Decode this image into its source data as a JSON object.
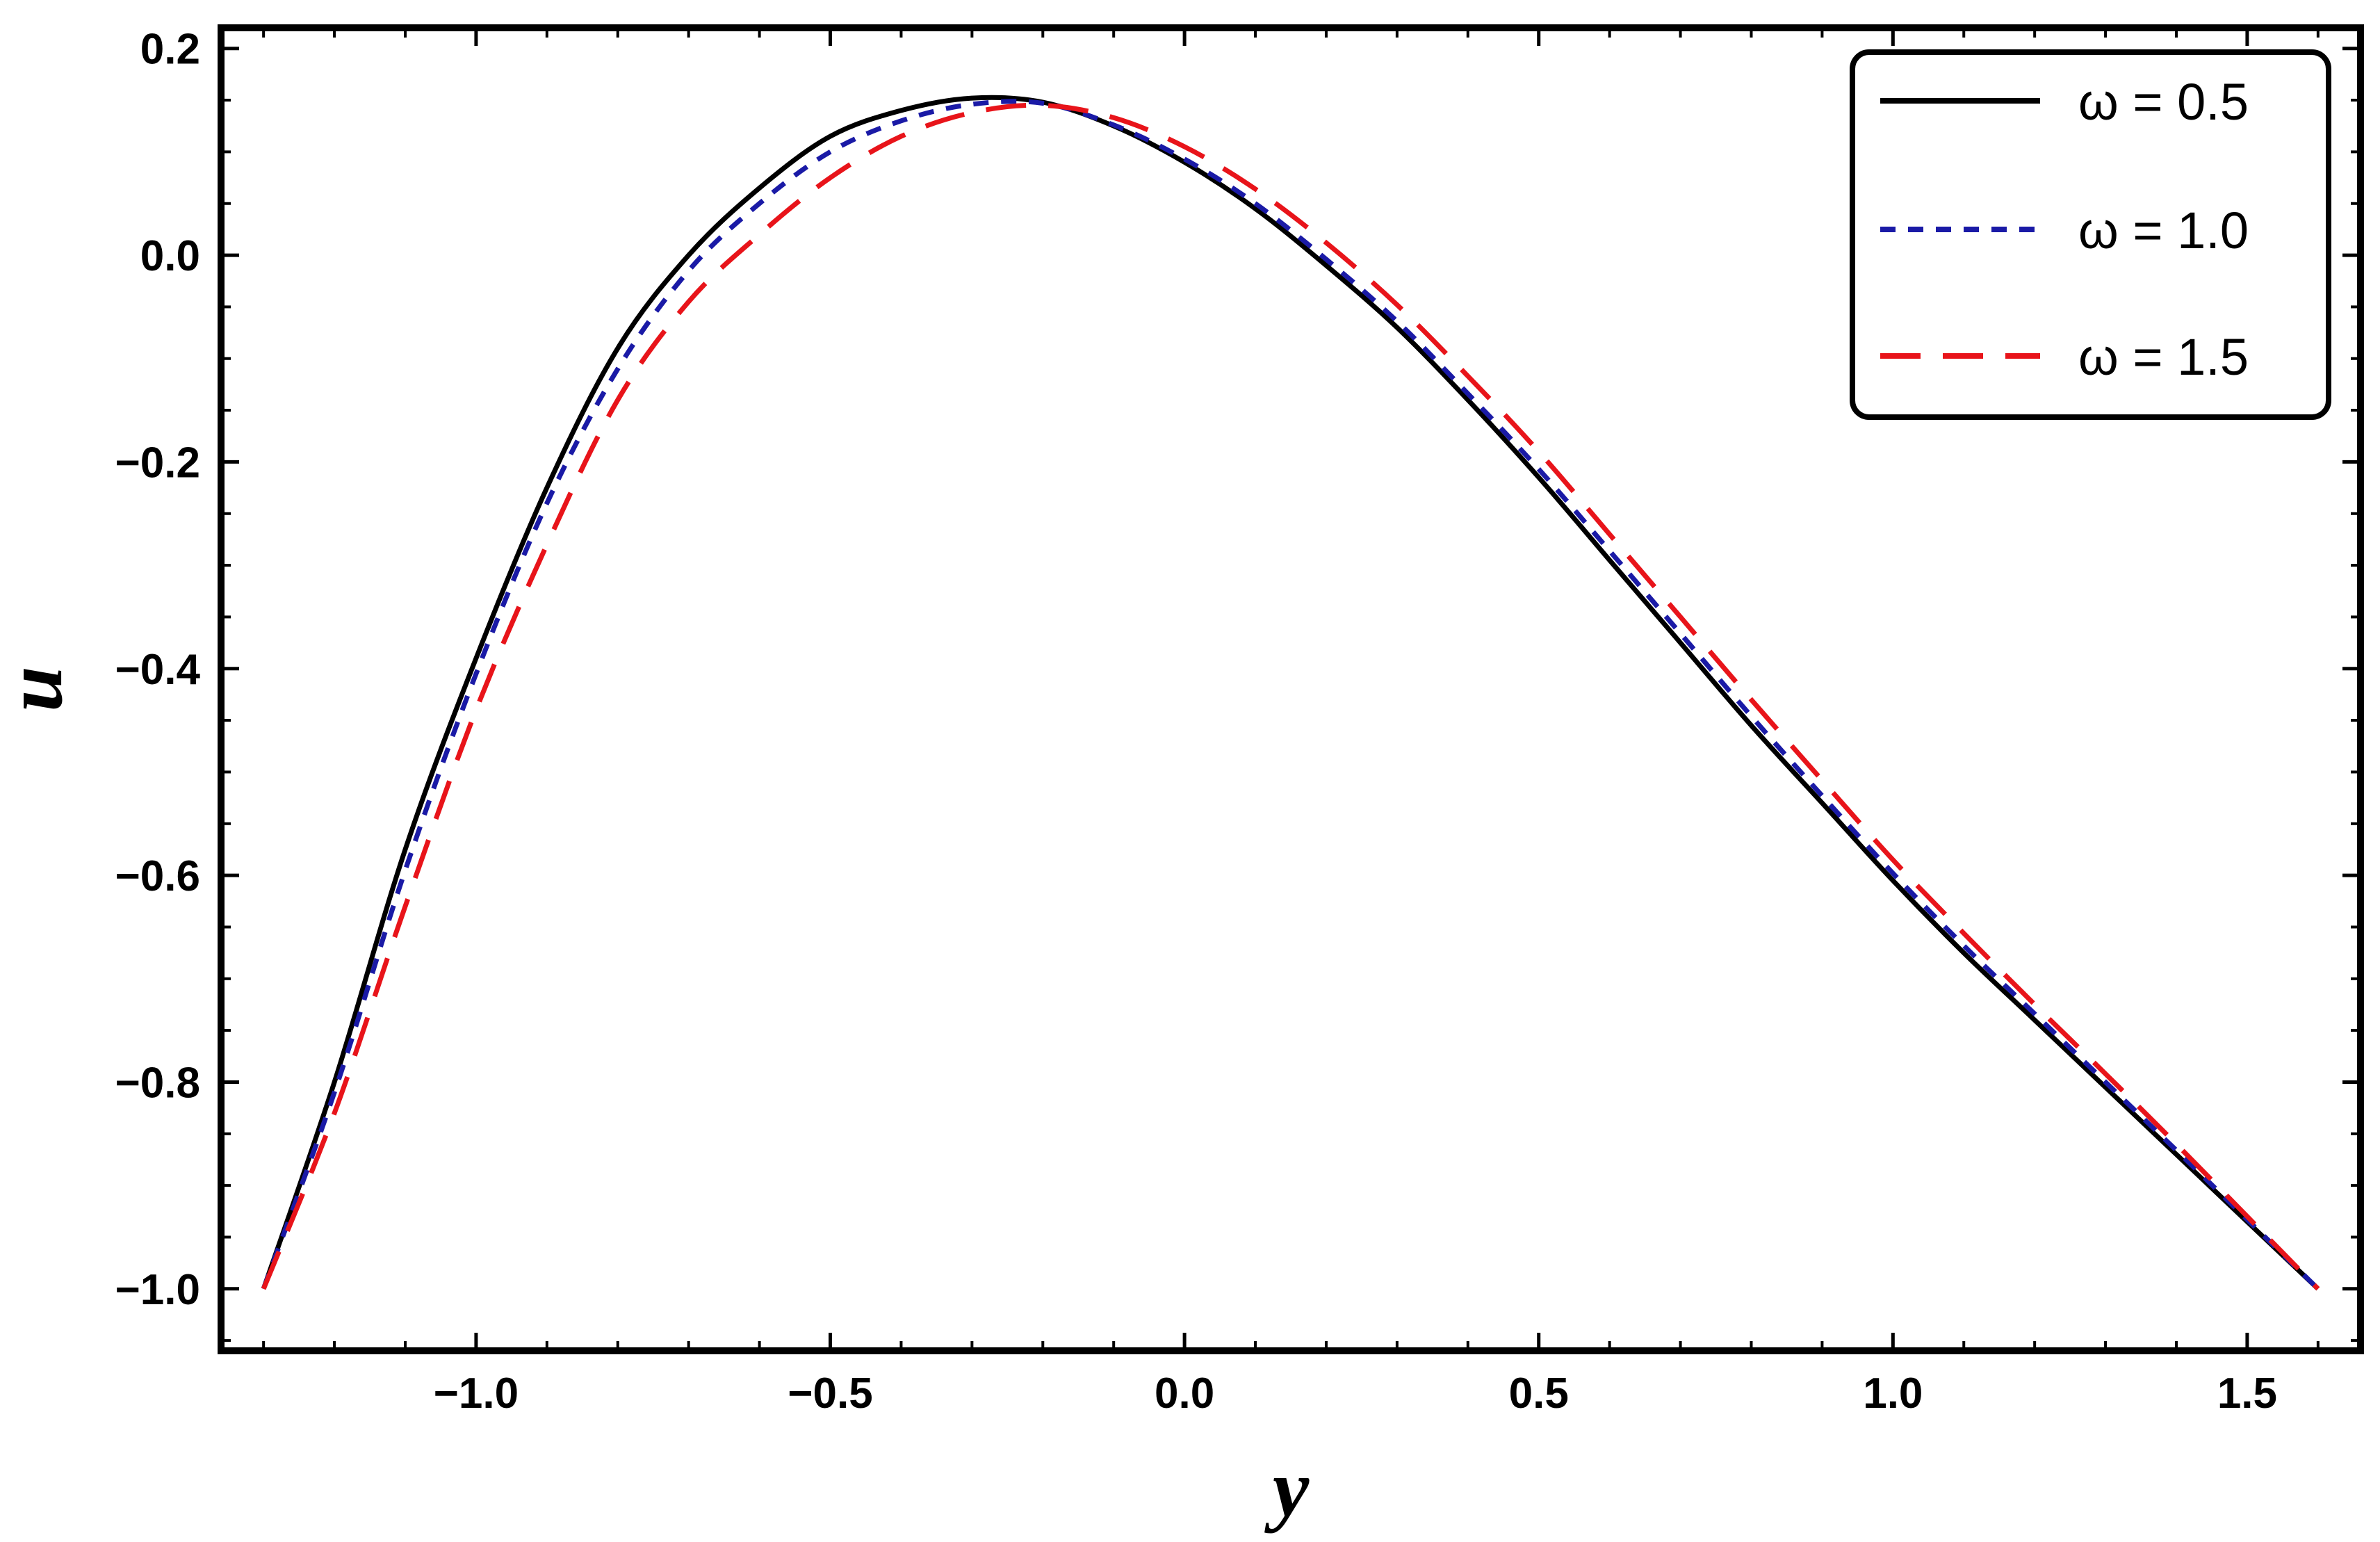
{
  "chart_data": {
    "type": "line",
    "xlabel": "y",
    "ylabel": "u",
    "xlim": [
      -1.36,
      1.66
    ],
    "ylim": [
      -1.06,
      0.22
    ],
    "grid": false,
    "legend_position": "top-right",
    "x_ticks": [
      {
        "value": -1.0,
        "label": "−1.0"
      },
      {
        "value": -0.5,
        "label": "−0.5"
      },
      {
        "value": 0.0,
        "label": "0.0"
      },
      {
        "value": 0.5,
        "label": "0.5"
      },
      {
        "value": 1.0,
        "label": "1.0"
      },
      {
        "value": 1.5,
        "label": "1.5"
      }
    ],
    "y_ticks": [
      {
        "value": 0.2,
        "label": "0.2"
      },
      {
        "value": 0.0,
        "label": "0.0"
      },
      {
        "value": -0.2,
        "label": "−0.2"
      },
      {
        "value": -0.4,
        "label": "−0.4"
      },
      {
        "value": -0.6,
        "label": "−0.6"
      },
      {
        "value": -0.8,
        "label": "−0.8"
      },
      {
        "value": -1.0,
        "label": "−1.0"
      }
    ],
    "x": [
      -1.3,
      -1.2,
      -1.1,
      -1.0,
      -0.9,
      -0.8,
      -0.7,
      -0.6,
      -0.5,
      -0.4,
      -0.3,
      -0.2,
      -0.1,
      0.0,
      0.1,
      0.2,
      0.3,
      0.4,
      0.5,
      0.6,
      0.7,
      0.8,
      0.9,
      1.0,
      1.1,
      1.2,
      1.3,
      1.4,
      1.5,
      1.6
    ],
    "series": [
      {
        "name": "ω = 0.5",
        "color": "#000000",
        "dash": "solid",
        "values": [
          -1.0,
          -0.8,
          -0.575,
          -0.39,
          -0.225,
          -0.09,
          0.0,
          0.065,
          0.115,
          0.14,
          0.152,
          0.148,
          0.125,
          0.09,
          0.045,
          -0.01,
          -0.07,
          -0.14,
          -0.215,
          -0.295,
          -0.375,
          -0.455,
          -0.53,
          -0.605,
          -0.675,
          -0.74,
          -0.805,
          -0.87,
          -0.935,
          -1.0
        ]
      },
      {
        "name": "ω = 1.0",
        "color": "#1a1aa6",
        "dash": "dotted",
        "values": [
          -1.0,
          -0.81,
          -0.595,
          -0.405,
          -0.24,
          -0.11,
          -0.015,
          0.05,
          0.1,
          0.13,
          0.146,
          0.147,
          0.126,
          0.093,
          0.05,
          -0.004,
          -0.064,
          -0.134,
          -0.207,
          -0.286,
          -0.366,
          -0.446,
          -0.523,
          -0.598,
          -0.668,
          -0.734,
          -0.8,
          -0.866,
          -0.933,
          -1.0
        ]
      },
      {
        "name": "ω = 1.5",
        "color": "#e8141a",
        "dash": "dashed",
        "values": [
          -1.0,
          -0.83,
          -0.63,
          -0.44,
          -0.28,
          -0.14,
          -0.045,
          0.02,
          0.075,
          0.115,
          0.138,
          0.145,
          0.133,
          0.105,
          0.064,
          0.012,
          -0.048,
          -0.117,
          -0.19,
          -0.27,
          -0.35,
          -0.43,
          -0.508,
          -0.585,
          -0.656,
          -0.725,
          -0.792,
          -0.86,
          -0.93,
          -1.0
        ]
      }
    ]
  }
}
